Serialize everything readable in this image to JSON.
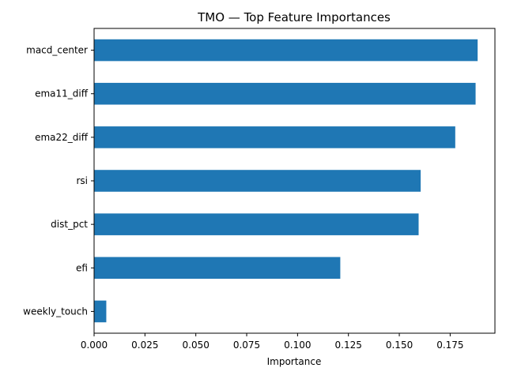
{
  "chart_data": {
    "type": "bar",
    "orientation": "horizontal",
    "title": "TMO — Top Feature Importances",
    "xlabel": "Importance",
    "ylabel": "",
    "categories": [
      "macd_center",
      "ema11_diff",
      "ema22_diff",
      "rsi",
      "dist_pct",
      "efi",
      "weekly_touch"
    ],
    "values": [
      0.1885,
      0.1875,
      0.1775,
      0.1605,
      0.1595,
      0.121,
      0.006
    ],
    "xlim": [
      0,
      0.197
    ],
    "xticks": [
      0.0,
      0.025,
      0.05,
      0.075,
      0.1,
      0.125,
      0.15,
      0.175
    ],
    "xtick_labels": [
      "0.000",
      "0.025",
      "0.050",
      "0.075",
      "0.100",
      "0.125",
      "0.150",
      "0.175"
    ],
    "grid": false,
    "legend": "none",
    "bar_color": "#1f77b4"
  }
}
